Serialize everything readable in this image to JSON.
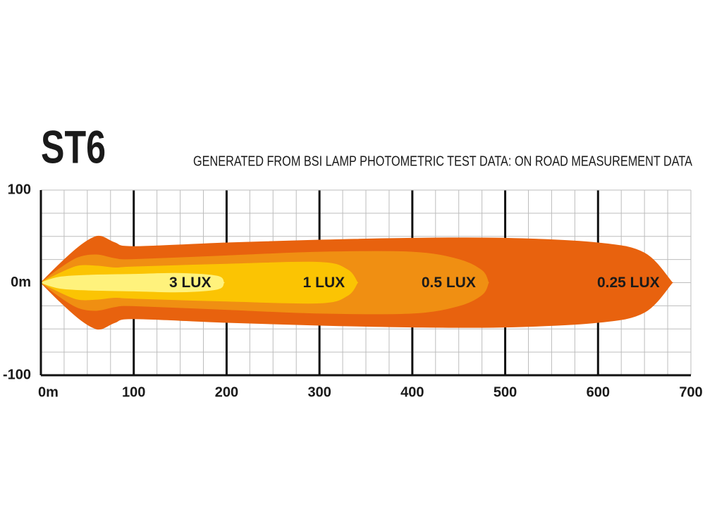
{
  "chart_data": {
    "type": "beam",
    "title": "ST6",
    "subtitle": "GENERATED FROM BSI LAMP PHOTOMETRIC TEST DATA: ON ROAD MEASUREMENT DATA",
    "xlim": [
      0,
      700
    ],
    "xticks": [
      {
        "value": 0,
        "label": "0m"
      },
      100,
      200,
      300,
      400,
      500,
      600,
      700
    ],
    "ylim": [
      -100,
      100
    ],
    "yticks": [
      -100,
      {
        "value": 0,
        "label": "0m"
      },
      100
    ],
    "grid": true,
    "series": [
      {
        "name": "0.25 LUX",
        "color": "#e8620e",
        "x": [
          0,
          20,
          40,
          55,
          65,
          80,
          100,
          200,
          300,
          400,
          500,
          600,
          650,
          680
        ],
        "values": [
          0,
          20,
          38,
          48,
          50,
          43,
          39,
          43,
          46,
          48,
          48,
          43,
          32,
          0
        ]
      },
      {
        "name": "0.5 LUX",
        "color": "#f08f12",
        "x": [
          0,
          20,
          40,
          60,
          80,
          100,
          200,
          300,
          400,
          450,
          475,
          482
        ],
        "values": [
          0,
          15,
          27,
          30,
          26,
          25,
          29,
          33,
          33,
          25,
          13,
          0
        ]
      },
      {
        "name": "1 LUX",
        "color": "#fbc403",
        "x": [
          0,
          20,
          40,
          60,
          80,
          100,
          200,
          300,
          330,
          341
        ],
        "values": [
          0,
          10,
          18,
          18,
          16,
          17,
          20,
          22,
          14,
          0
        ]
      },
      {
        "name": "3 LUX",
        "color": "#fff27c",
        "x": [
          0,
          20,
          50,
          100,
          150,
          190,
          197
        ],
        "values": [
          0,
          6,
          8,
          9,
          10,
          7,
          0
        ]
      }
    ]
  }
}
